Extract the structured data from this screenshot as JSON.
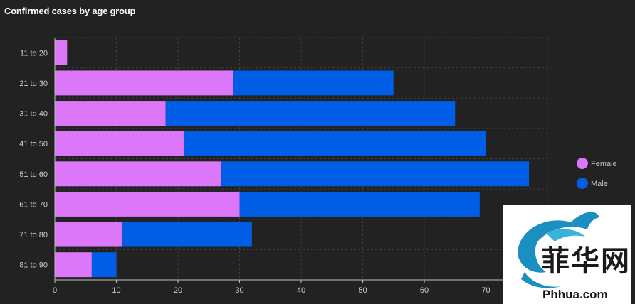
{
  "title": "Confirmed cases by age group",
  "chart_data": {
    "type": "bar",
    "orientation": "horizontal",
    "stacked": true,
    "title": "Confirmed cases by age group",
    "categories": [
      "11 to 20",
      "21 to 30",
      "31 to 40",
      "41 to 50",
      "51 to 60",
      "61 to 70",
      "71 to 80",
      "81 to 90"
    ],
    "series": [
      {
        "name": "Female",
        "color": "#dd77fa",
        "values": [
          2,
          29,
          18,
          21,
          27,
          30,
          11,
          6
        ]
      },
      {
        "name": "Male",
        "color": "#005ee6",
        "values": [
          0,
          26,
          47,
          49,
          50,
          39,
          21,
          4
        ]
      }
    ],
    "xlim": [
      0,
      80
    ],
    "xticks": [
      0,
      10,
      20,
      30,
      40,
      50,
      60,
      70
    ],
    "grid": true,
    "legend_position": "right"
  },
  "watermark": {
    "text": "Phhua.com",
    "logo_text": "菲华网",
    "color": "#1a8fc0"
  }
}
